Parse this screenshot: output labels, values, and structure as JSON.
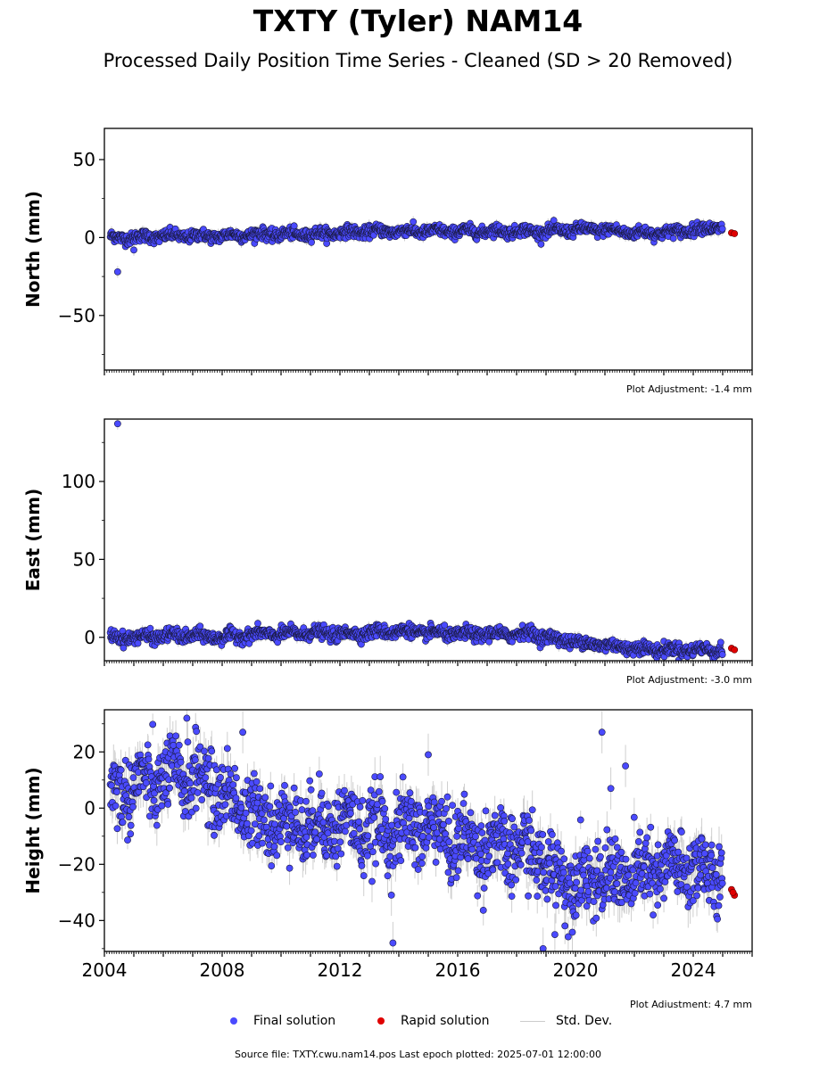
{
  "title": "TXTY (Tyler) NAM14",
  "subtitle": "Processed Daily Position Time Series - Cleaned (SD > 20 Removed)",
  "legend": {
    "final": "Final solution",
    "rapid": "Rapid solution",
    "std": "Std. Dev."
  },
  "source": "Source file: TXTY.cwu.nam14.pos  Last epoch plotted: 2025-07-01 12:00:00",
  "colors": {
    "final": "#4a4aff",
    "final_edge": "#1a1a40",
    "rapid": "#e00000",
    "std": "#bbbbbb"
  },
  "chart_data": [
    {
      "type": "scatter",
      "ylabel": "North (mm)",
      "xlim": [
        2004.0,
        2026.0
      ],
      "ylim": [
        -85,
        70
      ],
      "yticks": [
        50,
        0,
        -50
      ],
      "ytick_labels": [
        "50",
        "0",
        "−50"
      ],
      "xticks": [],
      "xtick_labels": [],
      "adjustment": "Plot Adjustment: -1.4 mm",
      "series": [
        {
          "name": "Final solution",
          "trend": {
            "x": [
              2004.2,
              2005.0,
              2006.0,
              2007.0,
              2008.0,
              2009.0,
              2010.0,
              2011.0,
              2012.0,
              2013.0,
              2014.0,
              2015.0,
              2016.0,
              2017.0,
              2018.0,
              2019.0,
              2020.0,
              2021.0,
              2022.0,
              2023.0,
              2024.0,
              2025.0
            ],
            "y": [
              0,
              0,
              1,
              1,
              1,
              2,
              2,
              2,
              3,
              4,
              4,
              4,
              4,
              4,
              4,
              4,
              5,
              5,
              3,
              3,
              5,
              7
            ]
          },
          "scatter": 1.8,
          "sd": 2.5,
          "outliers": [
            [
              2004.45,
              -22
            ],
            [
              2005.0,
              -8
            ]
          ]
        },
        {
          "name": "Rapid solution",
          "points": [
            [
              2025.3,
              3
            ],
            [
              2025.4,
              2.5
            ]
          ]
        }
      ]
    },
    {
      "type": "scatter",
      "ylabel": "East (mm)",
      "xlim": [
        2004.0,
        2026.0
      ],
      "ylim": [
        -15,
        140
      ],
      "yticks": [
        100,
        50,
        0
      ],
      "ytick_labels": [
        "100",
        "50",
        "0"
      ],
      "xticks": [],
      "xtick_labels": [],
      "adjustment": "Plot Adjustment: -3.0 mm",
      "series": [
        {
          "name": "Final solution",
          "trend": {
            "x": [
              2004.2,
              2005.0,
              2006.0,
              2007.0,
              2008.0,
              2009.0,
              2010.0,
              2011.0,
              2012.0,
              2013.0,
              2014.0,
              2015.0,
              2016.0,
              2017.0,
              2018.0,
              2018.5,
              2019.0,
              2020.0,
              2021.0,
              2022.0,
              2023.0,
              2024.0,
              2025.0
            ],
            "y": [
              0,
              0,
              1,
              1,
              0,
              2,
              2,
              3,
              2,
              3,
              4,
              3,
              2,
              2,
              2,
              3,
              0,
              -3,
              -5,
              -7,
              -8,
              -8,
              -8
            ]
          },
          "scatter": 2.0,
          "sd": 2.5,
          "outliers": [
            [
              2004.45,
              137
            ]
          ]
        },
        {
          "name": "Rapid solution",
          "points": [
            [
              2025.3,
              -7
            ],
            [
              2025.4,
              -8
            ]
          ]
        }
      ]
    },
    {
      "type": "scatter",
      "ylabel": "Height (mm)",
      "xlim": [
        2004.0,
        2026.0
      ],
      "ylim": [
        -51,
        35
      ],
      "yticks": [
        20,
        0,
        -20,
        -40
      ],
      "ytick_labels": [
        "20",
        "0",
        "−20",
        "−40"
      ],
      "xticks": [
        2004,
        2008,
        2012,
        2016,
        2020,
        2024
      ],
      "xtick_labels": [
        "2004",
        "2008",
        "2012",
        "2016",
        "2020",
        "2024"
      ],
      "adjustment": "Plot Adjustment: 4.7 mm",
      "series": [
        {
          "name": "Final solution",
          "trend": {
            "x": [
              2004.2,
              2005.0,
              2006.0,
              2007.0,
              2008.0,
              2009.0,
              2010.0,
              2011.0,
              2012.0,
              2013.0,
              2014.0,
              2015.0,
              2016.0,
              2017.0,
              2018.0,
              2018.8,
              2019.0,
              2020.0,
              2021.0,
              2022.0,
              2023.0,
              2024.0,
              2025.0
            ],
            "y": [
              5,
              8,
              10,
              12,
              5,
              -2,
              -5,
              -6,
              -5,
              -8,
              -8,
              -6,
              -12,
              -13,
              -15,
              -16,
              -22,
              -25,
              -25,
              -24,
              -22,
              -21,
              -25
            ]
          },
          "scatter": 6.5,
          "sd": 5,
          "outliers": [
            [
              2013.8,
              -48
            ],
            [
              2018.9,
              -50
            ],
            [
              2019.3,
              -45
            ],
            [
              2020.9,
              27
            ],
            [
              2021.7,
              15
            ],
            [
              2021.2,
              7
            ],
            [
              2015.0,
              19
            ],
            [
              2008.7,
              27
            ],
            [
              2006.8,
              32
            ]
          ]
        },
        {
          "name": "Rapid solution",
          "points": [
            [
              2025.3,
              -29
            ],
            [
              2025.4,
              -31
            ],
            [
              2025.35,
              -30
            ]
          ]
        }
      ]
    }
  ]
}
